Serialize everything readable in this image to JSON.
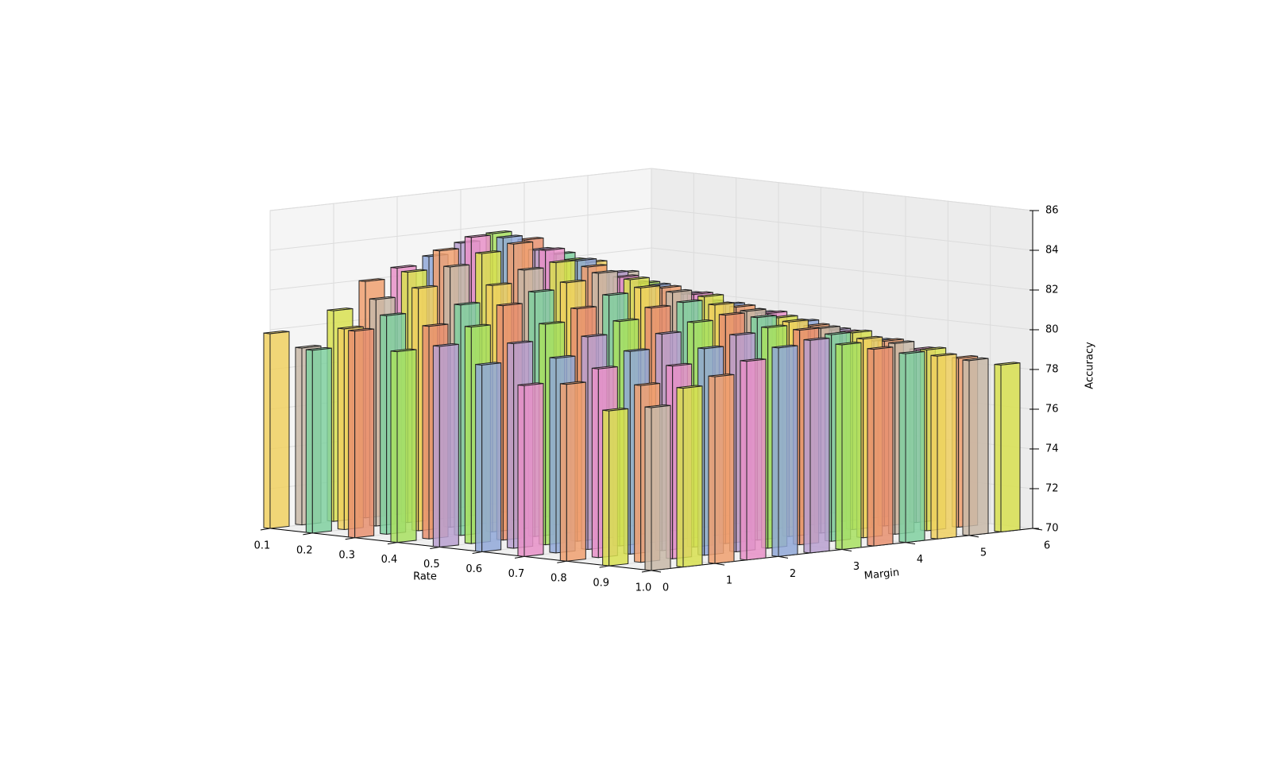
{
  "chart_data": {
    "type": "bar3d",
    "xlabel": "Rate",
    "ylabel": "Margin",
    "zlabel": "Accuracy",
    "x": [
      0.1,
      0.2,
      0.3,
      0.4,
      0.5,
      0.6,
      0.7,
      0.8,
      0.9,
      {
        "value": 1,
        "label": "1.0"
      }
    ],
    "y": [
      0,
      0.5,
      1,
      1.5,
      2,
      2.5,
      3,
      3.5,
      4,
      4.5,
      5,
      5.5
    ],
    "values": [
      [
        79.8,
        78.9,
        80.6,
        81.9,
        82.4,
        82.8,
        83.3,
        83.6,
        83.1,
        82.2,
        81.6,
        80.9
      ],
      [
        79.2,
        80.1,
        81.4,
        82.6,
        83.5,
        84.0,
        83.8,
        83.0,
        82.3,
        81.4,
        80.8,
        80.1
      ],
      [
        80.4,
        81.0,
        82.2,
        83.1,
        83.6,
        83.9,
        83.4,
        82.7,
        81.9,
        81.2,
        80.5,
        79.9
      ],
      [
        79.6,
        80.7,
        81.6,
        82.4,
        83.0,
        83.2,
        82.8,
        82.1,
        81.5,
        80.9,
        80.2,
        79.7
      ],
      [
        80.1,
        80.9,
        81.8,
        82.3,
        82.6,
        82.9,
        82.4,
        81.8,
        81.3,
        80.6,
        80.0,
        79.4
      ],
      [
        79.4,
        80.3,
        81.1,
        81.7,
        82.2,
        82.4,
        82.0,
        81.6,
        80.9,
        80.4,
        79.8,
        79.2
      ],
      [
        78.6,
        79.8,
        80.7,
        81.3,
        81.8,
        81.9,
        81.6,
        81.1,
        80.6,
        80.0,
        79.5,
        78.9
      ],
      [
        78.9,
        79.5,
        80.2,
        80.9,
        81.3,
        81.5,
        81.2,
        80.8,
        80.3,
        79.9,
        79.3,
        78.7
      ],
      [
        77.8,
        78.9,
        79.7,
        80.4,
        80.9,
        81.1,
        80.8,
        80.4,
        80.0,
        79.6,
        79.1,
        78.5
      ],
      [
        78.2,
        79.0,
        79.4,
        80.0,
        80.5,
        80.7,
        80.3,
        79.9,
        79.5,
        79.2,
        78.8,
        78.4
      ]
    ],
    "palette": [
      "#f0d060",
      "#a8e060",
      "#e890c8",
      "#c8b8a8",
      "#e89070",
      "#90a8d8",
      "#d8e050",
      "#80d0a0",
      "#b8a0d0",
      "#f0a070"
    ],
    "xlim": [
      0.1,
      1.0
    ],
    "ylim": [
      0,
      6
    ],
    "zlim": [
      70,
      86
    ],
    "xticks": [
      0.1,
      0.2,
      0.3,
      0.4,
      0.5,
      0.6,
      0.7,
      0.8,
      0.9,
      {
        "value": 1,
        "label": "1.0"
      }
    ],
    "yticks": [
      0,
      1,
      2,
      3,
      4,
      5,
      6
    ],
    "zticks": [
      70,
      72,
      74,
      76,
      78,
      80,
      82,
      84,
      86
    ],
    "grid": true
  }
}
